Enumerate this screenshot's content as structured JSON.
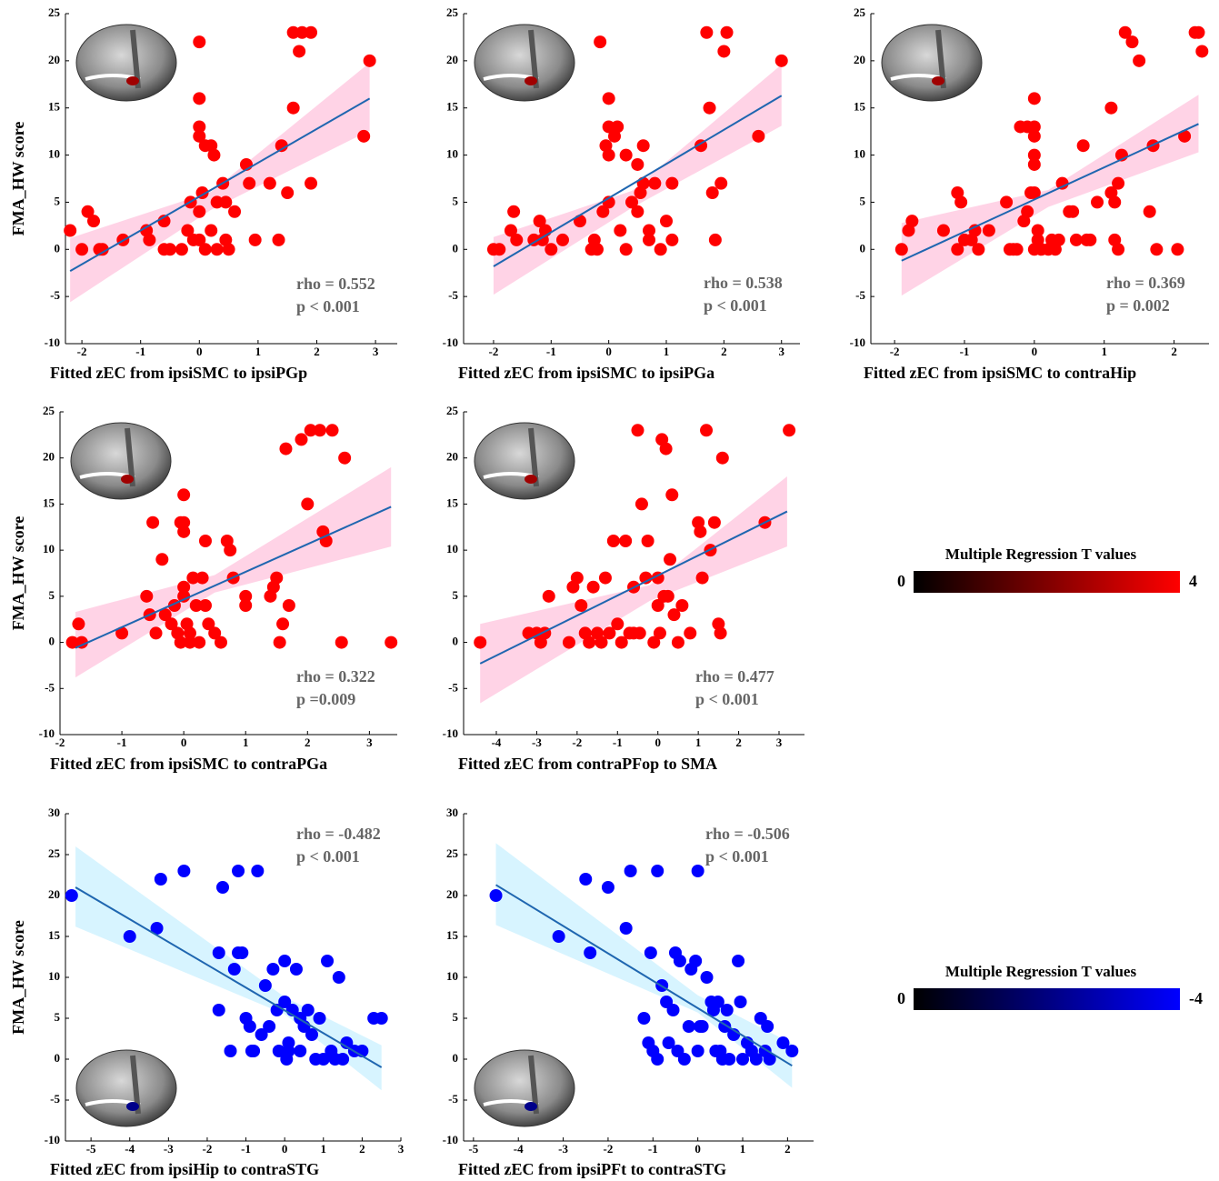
{
  "chart_data": [
    {
      "type": "scatter",
      "xlabel": "Fitted zEC from ipsiSMC to ipsiPGp",
      "ylabel": "FMA_HW score",
      "annotations": [
        "rho = 0.552",
        "p < 0.001"
      ],
      "color": "#ff0000",
      "fit_color": "#1f66b0",
      "ci_color": "#ffc4de",
      "x": [
        -2.2,
        -1.9,
        -1.8,
        -1.7,
        -1.65,
        -2.0,
        -1.3,
        -0.9,
        -0.85,
        -0.6,
        -0.6,
        -0.5,
        -0.3,
        -0.2,
        -0.15,
        0,
        0,
        0,
        0,
        0.05,
        0,
        0,
        0.1,
        0.2,
        0.25,
        0.3,
        0.4,
        0.45,
        0.5,
        0.6,
        0.8,
        0.85,
        0.95,
        1.2,
        1.35,
        1.4,
        1.5,
        1.6,
        1.7,
        1.6,
        1.75,
        1.9,
        1.9,
        2.8,
        2.9,
        0.1,
        0.2,
        0.3,
        -0.1,
        0.45
      ],
      "values": [
        2,
        4,
        3,
        0,
        0,
        0,
        1,
        2,
        1,
        3,
        0,
        0,
        0,
        2,
        5,
        22,
        16,
        13,
        12,
        6,
        4,
        1,
        11,
        11,
        10,
        5,
        7,
        5,
        0,
        4,
        9,
        7,
        1,
        7,
        1,
        11,
        6,
        15,
        21,
        23,
        23,
        23,
        7,
        12,
        20,
        0,
        2,
        0,
        1,
        1
      ],
      "fit": {
        "x": [
          -2.2,
          2.9
        ],
        "values": [
          -2.3,
          16
        ]
      },
      "ci": {
        "x": [
          -2.2,
          0.2,
          2.9
        ],
        "lower": [
          -5.6,
          4.2,
          12.6
        ],
        "upper": [
          1.2,
          6.1,
          19.8
        ]
      },
      "xlim": [
        -2.28,
        3.37
      ],
      "ylim": [
        -10,
        25
      ],
      "xticks": [
        -2,
        -1,
        0,
        1,
        2,
        3
      ],
      "yticks": [
        -10,
        -5,
        0,
        5,
        10,
        15,
        20,
        25
      ]
    },
    {
      "type": "scatter",
      "xlabel": "Fitted zEC from ipsiSMC to ipsiPGa",
      "annotations": [
        "rho = 0.538",
        "p < 0.001"
      ],
      "color": "#ff0000",
      "fit_color": "#1f66b0",
      "ci_color": "#ffc4de",
      "x": [
        -2,
        -1.9,
        -1.7,
        -1.65,
        -1.6,
        -1.3,
        -1.2,
        -1.15,
        -1.1,
        -1,
        -0.8,
        -0.5,
        -0.3,
        -0.25,
        -0.2,
        -0.15,
        -0.1,
        0,
        0,
        0,
        -0.05,
        0,
        0.1,
        0.15,
        0.2,
        0.3,
        0.3,
        0.4,
        0.5,
        0.5,
        0.55,
        0.6,
        0.6,
        0.7,
        0.8,
        1.0,
        1.1,
        1.1,
        1.6,
        1.7,
        1.75,
        1.8,
        1.85,
        1.95,
        2.0,
        2.05,
        2.6,
        3.0,
        0.9,
        0.7
      ],
      "values": [
        0,
        0,
        2,
        4,
        1,
        1,
        3,
        1,
        2,
        0,
        1,
        3,
        0,
        1,
        0,
        22,
        4,
        5,
        16,
        13,
        11,
        10,
        12,
        13,
        2,
        0,
        10,
        5,
        9,
        4,
        6,
        7,
        11,
        1,
        7,
        3,
        7,
        1,
        11,
        23,
        15,
        6,
        1,
        7,
        21,
        23,
        12,
        20,
        0,
        2
      ],
      "fit": {
        "x": [
          -2,
          3
        ],
        "values": [
          -1.8,
          16.3
        ]
      },
      "ci": {
        "x": [
          -2,
          0.4,
          3
        ],
        "lower": [
          -4.8,
          4.4,
          13.1
        ],
        "upper": [
          1.3,
          6.2,
          19.6
        ]
      },
      "xlim": [
        -2.52,
        3.32
      ],
      "ylim": [
        -10,
        25
      ],
      "xticks": [
        -2,
        -1,
        0,
        1,
        2,
        3
      ],
      "yticks": [
        -10,
        -5,
        0,
        5,
        10,
        15,
        20,
        25
      ]
    },
    {
      "type": "scatter",
      "xlabel": "Fitted zEC from ipsiSMC to contraHip",
      "annotations": [
        "rho = 0.369",
        "p = 0.002"
      ],
      "color": "#ff0000",
      "fit_color": "#1f66b0",
      "ci_color": "#ffc4de",
      "x": [
        -1.9,
        -1.8,
        -1.75,
        -1.3,
        -1.1,
        -1.05,
        -1.1,
        -1,
        -0.9,
        -0.85,
        -0.8,
        -0.65,
        -0.4,
        -0.35,
        -0.3,
        -0.25,
        -0.2,
        -0.15,
        -0.1,
        -0.1,
        -0.05,
        0,
        0,
        0,
        0,
        0,
        0,
        0.05,
        0,
        0.05,
        0.1,
        0.2,
        0.25,
        0.3,
        0.35,
        0.4,
        0.5,
        0.55,
        0.6,
        0.7,
        0.75,
        0.8,
        0.9,
        1.1,
        1.1,
        1.15,
        1.2,
        1.25,
        1.3,
        1.4,
        1.5,
        1.65,
        1.75,
        1.7,
        2.05,
        2.15,
        2.3,
        2.35,
        2.4,
        1.15,
        1.2
      ],
      "values": [
        0,
        2,
        3,
        2,
        6,
        5,
        0,
        1,
        1,
        2,
        0,
        2,
        5,
        0,
        0,
        0,
        13,
        3,
        4,
        13,
        6,
        16,
        13,
        12,
        10,
        9,
        6,
        1,
        0,
        2,
        0,
        0,
        1,
        0,
        1,
        7,
        4,
        4,
        1,
        11,
        1,
        1,
        5,
        6,
        15,
        1,
        0,
        10,
        23,
        22,
        20,
        4,
        0,
        11,
        0,
        12,
        23,
        23,
        21,
        5,
        7
      ],
      "fit": {
        "x": [
          -1.9,
          2.35
        ],
        "values": [
          -1.2,
          13.3
        ]
      },
      "ci": {
        "x": [
          -1.9,
          0.2,
          2.35
        ],
        "lower": [
          -4.9,
          4.5,
          10.3
        ],
        "upper": [
          2.8,
          6.3,
          16.4
        ]
      },
      "xlim": [
        -2.34,
        2.5
      ],
      "ylim": [
        -10,
        25
      ],
      "xticks": [
        -2,
        -1,
        0,
        1,
        2
      ],
      "yticks": [
        -10,
        -5,
        0,
        5,
        10,
        15,
        20,
        25
      ]
    },
    {
      "type": "scatter",
      "xlabel": "Fitted zEC from ipsiSMC to contraPGa",
      "ylabel": "FMA_HW score",
      "annotations": [
        "rho = 0.322",
        "p =0.009"
      ],
      "color": "#ff0000",
      "fit_color": "#1f66b0",
      "ci_color": "#ffc4de",
      "x": [
        -1.8,
        -1.7,
        -1.65,
        -1,
        -0.6,
        -0.55,
        -0.5,
        -0.45,
        -0.35,
        -0.3,
        -0.2,
        -0.15,
        -0.1,
        -0.05,
        0,
        0,
        -0.05,
        0,
        0,
        0,
        0.05,
        0.1,
        0.15,
        0.2,
        0.25,
        0.3,
        0.35,
        0.35,
        0.4,
        0.5,
        0.6,
        0.7,
        0.75,
        0.8,
        1.0,
        1.0,
        1.4,
        1.45,
        1.5,
        1.55,
        1.6,
        1.65,
        1.7,
        1.9,
        2.0,
        2.05,
        2.2,
        2.25,
        2.3,
        2.4,
        2.55,
        2.6,
        3.35,
        0.1
      ],
      "values": [
        0,
        2,
        0,
        1,
        5,
        3,
        13,
        1,
        9,
        3,
        2,
        4,
        1,
        0,
        16,
        13,
        13,
        6,
        5,
        12,
        2,
        1,
        7,
        4,
        0,
        7,
        4,
        11,
        2,
        1,
        0,
        11,
        10,
        7,
        4,
        5,
        5,
        6,
        7,
        0,
        2,
        21,
        4,
        22,
        15,
        23,
        23,
        12,
        11,
        23,
        0,
        20,
        0,
        0
      ],
      "fit": {
        "x": [
          -1.75,
          3.35
        ],
        "values": [
          -0.6,
          14.7
        ]
      },
      "ci": {
        "x": [
          -1.75,
          0.5,
          3.35
        ],
        "lower": [
          -3.8,
          5.4,
          10.4
        ],
        "upper": [
          3.3,
          7.3,
          19
        ]
      },
      "xlim": [
        -2,
        3.45
      ],
      "ylim": [
        -10,
        25
      ],
      "xticks": [
        -2,
        -1,
        0,
        1,
        2,
        3
      ],
      "yticks": [
        -10,
        -5,
        0,
        5,
        10,
        15,
        20,
        25
      ]
    },
    {
      "type": "scatter",
      "xlabel": "Fitted zEC from contraPFop to SMA",
      "annotations": [
        "rho = 0.477",
        "p < 0.001"
      ],
      "color": "#ff0000",
      "fit_color": "#1f66b0",
      "ci_color": "#ffc4de",
      "x": [
        -4.4,
        -3.2,
        -3,
        -2.9,
        -2.8,
        -2.7,
        -2.2,
        -2.1,
        -2,
        -1.9,
        -1.8,
        -1.7,
        -1.6,
        -1.5,
        -1.4,
        -1.3,
        -1.2,
        -1.1,
        -1,
        -0.9,
        -0.8,
        -0.7,
        -0.6,
        -0.5,
        -0.45,
        -0.4,
        -0.3,
        -0.25,
        -0.1,
        0,
        0,
        0.05,
        0.1,
        0.2,
        0.25,
        0.3,
        0.35,
        0.4,
        0.5,
        0.6,
        0.8,
        1.0,
        1.05,
        1.1,
        1.2,
        1.3,
        1.4,
        1.5,
        1.55,
        1.6,
        2.65,
        3.25,
        -0.6,
        0.15
      ],
      "values": [
        0,
        1,
        1,
        0,
        1,
        5,
        0,
        6,
        7,
        4,
        1,
        0,
        6,
        1,
        0,
        7,
        1,
        11,
        2,
        0,
        11,
        1,
        6,
        23,
        1,
        15,
        7,
        11,
        0,
        4,
        7,
        1,
        22,
        21,
        5,
        9,
        16,
        3,
        0,
        4,
        1,
        13,
        12,
        7,
        23,
        10,
        13,
        2,
        1,
        20,
        13,
        23,
        1,
        5
      ],
      "fit": {
        "x": [
          -4.4,
          3.2
        ],
        "values": [
          -2.3,
          14.2
        ]
      },
      "ci": {
        "x": [
          -4.4,
          -0.2,
          3.2
        ],
        "lower": [
          -6.6,
          4.5,
          10.4
        ],
        "upper": [
          2,
          6.2,
          18
        ]
      },
      "xlim": [
        -4.81,
        3.63
      ],
      "ylim": [
        -10,
        25
      ],
      "xticks": [
        -4,
        -3,
        -2,
        -1,
        0,
        1,
        2,
        3
      ],
      "yticks": [
        -10,
        -5,
        0,
        5,
        10,
        15,
        20,
        25
      ]
    },
    {
      "type": "scatter",
      "xlabel": "Fitted zEC from ipsiHip to contraSTG",
      "ylabel": "FMA_HW score",
      "annotations": [
        "rho = -0.482",
        "p < 0.001"
      ],
      "color": "#0000ff",
      "fit_color": "#1f66b0",
      "ci_color": "#c9f0ff",
      "x": [
        -5.5,
        -4,
        -3.3,
        -3.2,
        -2.6,
        -1.7,
        -1.7,
        -1.6,
        -1.4,
        -1.3,
        -1.2,
        -1.1,
        -1.2,
        -1,
        -0.9,
        -0.85,
        -0.8,
        -0.7,
        -0.6,
        -0.5,
        -0.4,
        -0.3,
        -0.2,
        -0.15,
        0,
        0,
        0.1,
        0.1,
        0.2,
        0.3,
        0.4,
        0.5,
        0.6,
        0.7,
        0.8,
        0.9,
        1,
        1.1,
        1.2,
        1.3,
        1.4,
        1.5,
        1.6,
        1.8,
        2.0,
        2.3,
        2.5,
        0.05,
        0.4
      ],
      "values": [
        20,
        15,
        16,
        22,
        23,
        13,
        6,
        21,
        1,
        11,
        13,
        13,
        23,
        5,
        4,
        1,
        1,
        23,
        3,
        9,
        4,
        11,
        6,
        1,
        12,
        7,
        2,
        1,
        6,
        11,
        5,
        4,
        6,
        3,
        0,
        5,
        0,
        12,
        1,
        0,
        10,
        0,
        2,
        1,
        1,
        5,
        5,
        0,
        1
      ],
      "fit": {
        "x": [
          -5.4,
          2.5
        ],
        "values": [
          21,
          -1
        ]
      },
      "ci": {
        "x": [
          -5.4,
          0,
          2.5
        ],
        "lower": [
          16.2,
          5.5,
          -3.8
        ],
        "upper": [
          26,
          7.6,
          1.7
        ]
      },
      "xlim": [
        -5.66,
        3
      ],
      "ylim": [
        -10,
        30
      ],
      "xticks": [
        -5,
        -4,
        -3,
        -2,
        -1,
        0,
        1,
        2,
        3
      ],
      "yticks": [
        -10,
        -5,
        0,
        5,
        10,
        15,
        20,
        25,
        30
      ]
    },
    {
      "type": "scatter",
      "xlabel": "Fitted zEC from ipsiPFt to contraSTG",
      "annotations": [
        "rho = -0.506",
        "p < 0.001"
      ],
      "color": "#0000ff",
      "fit_color": "#1f66b0",
      "ci_color": "#c9f0ff",
      "x": [
        -4.5,
        -3.1,
        -2.5,
        -2.4,
        -2,
        -1.6,
        -1.5,
        -1.2,
        -1.1,
        -1.05,
        -1,
        -0.9,
        -0.9,
        -0.8,
        -0.7,
        -0.65,
        -0.55,
        -0.5,
        -0.45,
        -0.4,
        -0.3,
        -0.2,
        -0.15,
        -0.05,
        0,
        0,
        0.05,
        0.1,
        0.2,
        0.3,
        0.35,
        0.4,
        0.45,
        0.5,
        0.6,
        0.65,
        0.7,
        0.8,
        0.9,
        0.95,
        1,
        1.1,
        1.2,
        1.3,
        1.4,
        1.5,
        1.55,
        1.6,
        1.9,
        2.1,
        0.55
      ],
      "values": [
        20,
        15,
        22,
        13,
        21,
        16,
        23,
        5,
        2,
        13,
        1,
        0,
        23,
        9,
        7,
        2,
        6,
        13,
        1,
        12,
        0,
        4,
        11,
        12,
        23,
        1,
        4,
        4,
        10,
        7,
        6,
        1,
        7,
        1,
        4,
        6,
        0,
        3,
        12,
        7,
        0,
        2,
        1,
        0,
        5,
        1,
        4,
        0,
        2,
        1,
        0
      ],
      "fit": {
        "x": [
          -4.5,
          2.1
        ],
        "values": [
          21.3,
          -0.8
        ]
      },
      "ci": {
        "x": [
          -4.5,
          0,
          2.1
        ],
        "lower": [
          16.4,
          5.7,
          -3.5
        ],
        "upper": [
          26.4,
          7.8,
          1.9
        ]
      },
      "xlim": [
        -5.22,
        2.58
      ],
      "ylim": [
        -10,
        30
      ],
      "xticks": [
        -5,
        -4,
        -3,
        -2,
        -1,
        0,
        1,
        2
      ],
      "yticks": [
        -10,
        -5,
        0,
        5,
        10,
        15,
        20,
        25,
        30
      ]
    }
  ],
  "colorbars": [
    {
      "title": "Multiple Regression T values",
      "ticks": [
        0,
        4
      ],
      "colors": [
        "#000000",
        "#ff0000"
      ]
    },
    {
      "title": "Multiple Regression T values",
      "ticks": [
        0,
        -4
      ],
      "colors": [
        "#000000",
        "#0000ff"
      ]
    }
  ]
}
